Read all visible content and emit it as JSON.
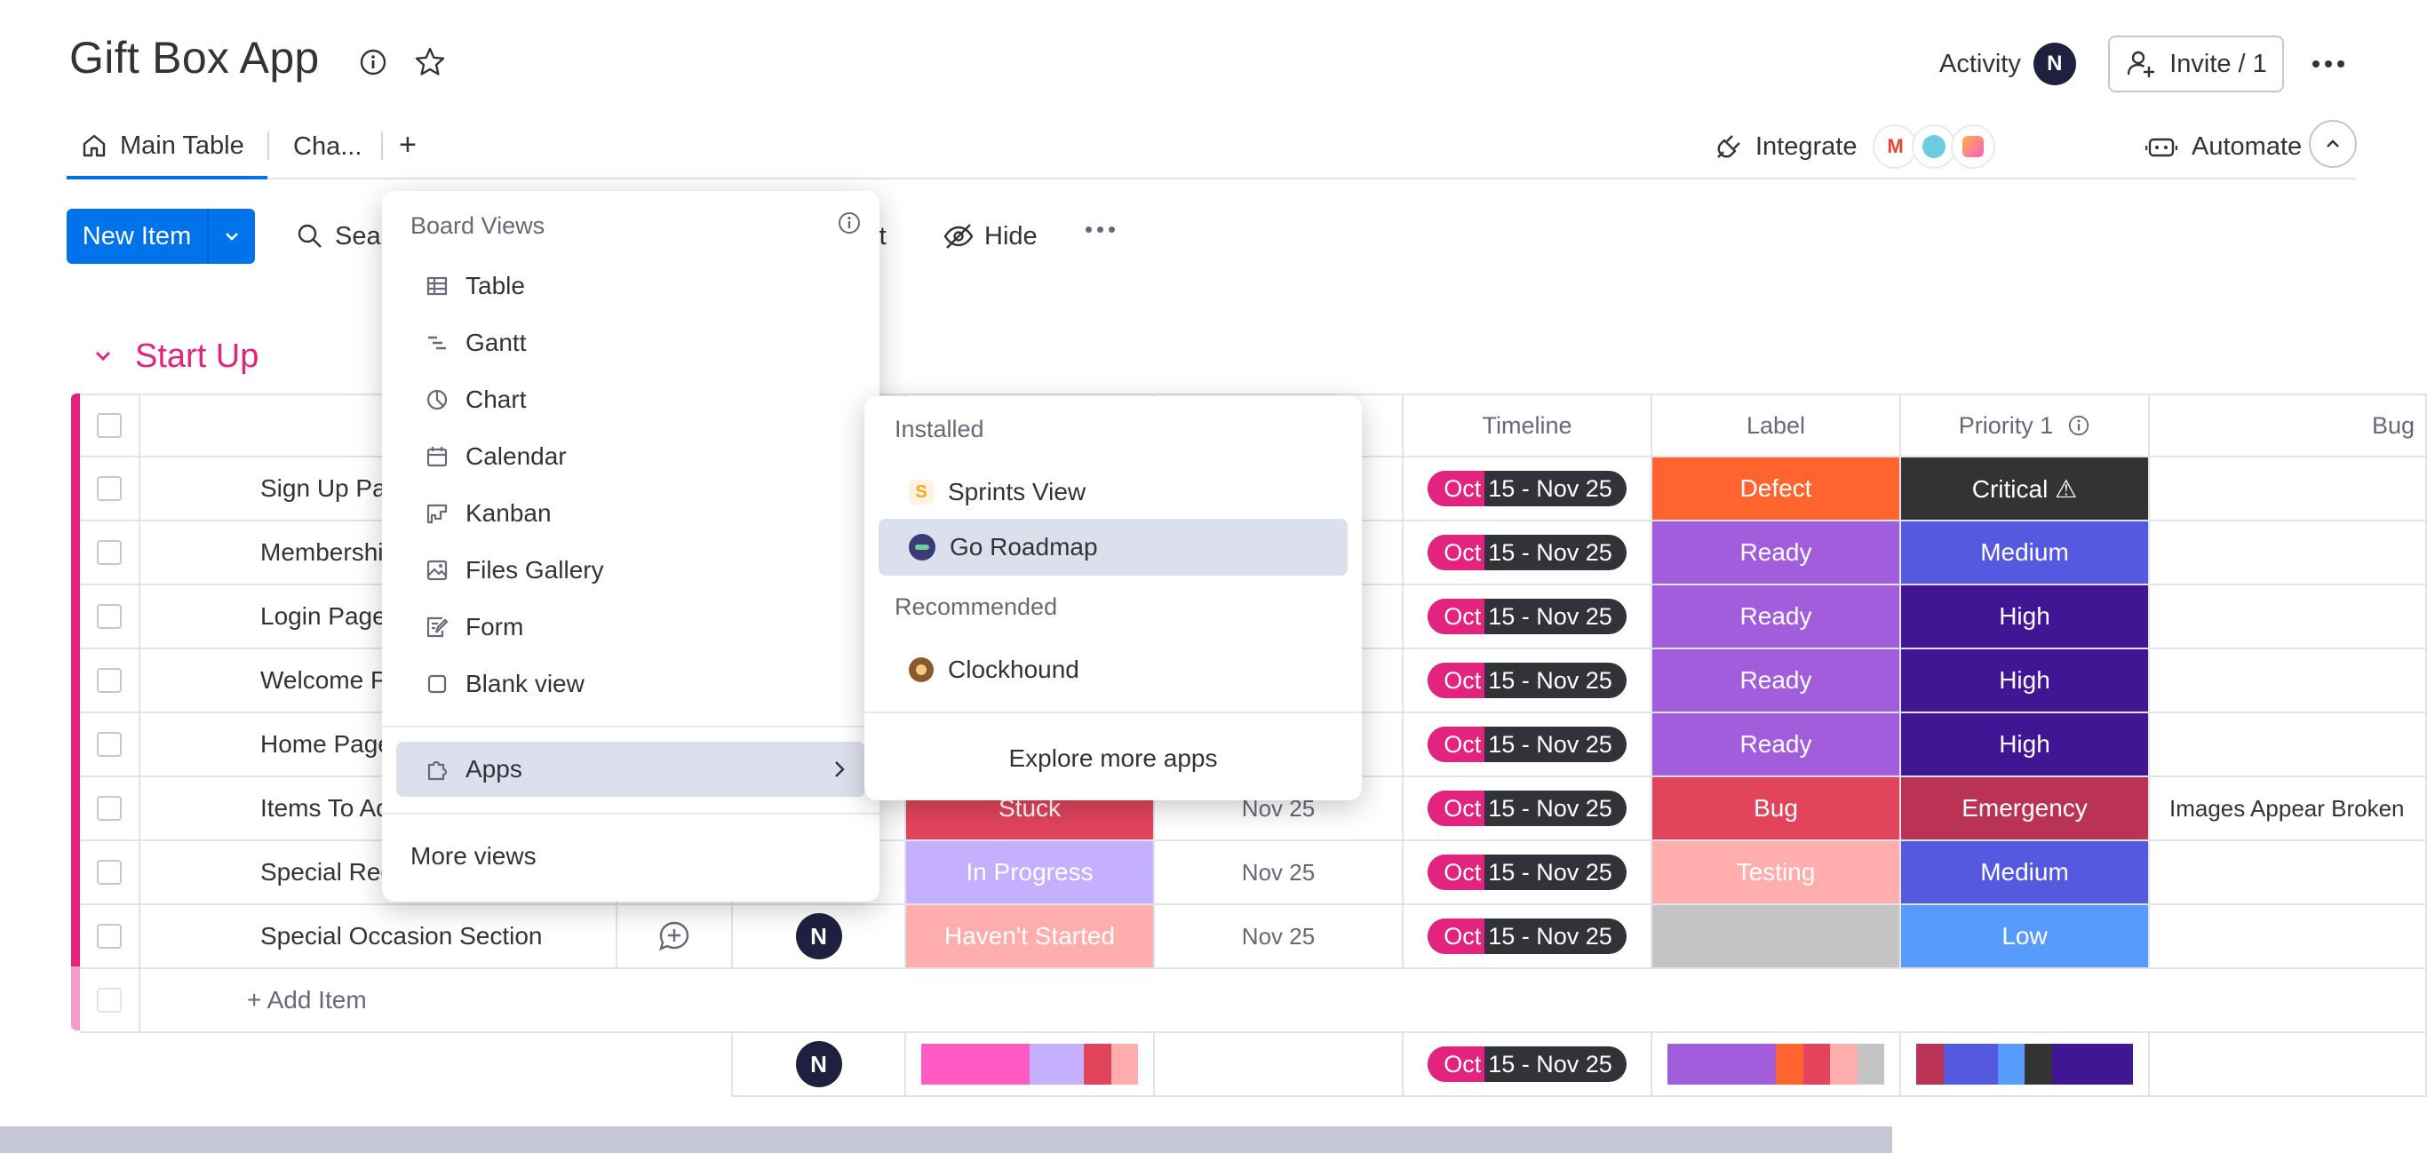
{
  "header": {
    "title": "Gift Box App",
    "activity_label": "Activity",
    "avatar_initial": "N",
    "invite_label": "Invite / 1"
  },
  "tabs": {
    "main": "Main Table",
    "second": "Cha..."
  },
  "integrations": {
    "integrate_label": "Integrate",
    "automate_label": "Automate"
  },
  "toolbar": {
    "new_item": "New Item",
    "search": "Sear",
    "sort_tail": "rt",
    "hide": "Hide"
  },
  "group": {
    "title": "Start Up",
    "color": "#e2247f",
    "headers": {
      "timeline": "Timeline",
      "label": "Label",
      "priority": "Priority 1",
      "bug": "Bug"
    },
    "rows": [
      {
        "name": "Sign Up Page",
        "status": "",
        "status_color": "",
        "date": "",
        "tl_a": "Oct",
        "tl_b": "15 - Nov 25",
        "label": "Defect",
        "label_color": "#ff642e",
        "priority": "Critical ⚠",
        "priority_color": "#333333",
        "bug": ""
      },
      {
        "name": "Membership",
        "status": "",
        "status_color": "",
        "date": "",
        "tl_a": "Oct",
        "tl_b": "15 - Nov 25",
        "label": "Ready",
        "label_color": "#a25ddc",
        "priority": "Medium",
        "priority_color": "#5559df",
        "bug": ""
      },
      {
        "name": "Login Page",
        "status": "",
        "status_color": "",
        "date": "",
        "tl_a": "Oct",
        "tl_b": "15 - Nov 25",
        "label": "Ready",
        "label_color": "#a25ddc",
        "priority": "High",
        "priority_color": "#401694",
        "bug": ""
      },
      {
        "name": "Welcome Page",
        "status": "",
        "status_color": "",
        "date": "",
        "tl_a": "Oct",
        "tl_b": "15 - Nov 25",
        "label": "Ready",
        "label_color": "#a25ddc",
        "priority": "High",
        "priority_color": "#401694",
        "bug": ""
      },
      {
        "name": "Home Page With",
        "status": "",
        "status_color": "",
        "date": "",
        "tl_a": "Oct",
        "tl_b": "15 - Nov 25",
        "label": "Ready",
        "label_color": "#a25ddc",
        "priority": "High",
        "priority_color": "#401694",
        "bug": ""
      },
      {
        "name": "Items To Add To",
        "status": "Stuck",
        "status_color": "#e2445c",
        "date": "Nov 25",
        "tl_a": "Oct",
        "tl_b": "15 - Nov 25",
        "label": "Bug",
        "label_color": "#e2445c",
        "priority": "Emergency",
        "priority_color": "#bb3354",
        "bug": "Images Appear Broken"
      },
      {
        "name": "Special Request",
        "status": "In Progress",
        "status_color": "#c4b0ff",
        "date": "Nov 25",
        "tl_a": "Oct",
        "tl_b": "15 - Nov 25",
        "label": "Testing",
        "label_color": "#ffadad",
        "priority": "Medium",
        "priority_color": "#5559df",
        "bug": ""
      },
      {
        "name": "Special Occasion Section",
        "status": "Haven't Started",
        "status_color": "#ffadad",
        "date": "Nov 25",
        "tl_a": "Oct",
        "tl_b": "15 - Nov 25",
        "label": "",
        "label_color": "#c4c4c4",
        "priority": "Low",
        "priority_color": "#579bfc",
        "bug": ""
      }
    ],
    "add_item": "+ Add Item",
    "summary": {
      "avatar_initial": "N",
      "tl_a": "Oct",
      "tl_b": "15 - Nov 25",
      "status_dist": [
        {
          "color": "#ff5ac4",
          "share": 0.5
        },
        {
          "color": "#c4b0ff",
          "share": 0.25
        },
        {
          "color": "#e2445c",
          "share": 0.125
        },
        {
          "color": "#ffadad",
          "share": 0.125
        }
      ],
      "label_dist": [
        {
          "color": "#a25ddc",
          "share": 0.5
        },
        {
          "color": "#ff642e",
          "share": 0.125
        },
        {
          "color": "#e2445c",
          "share": 0.125
        },
        {
          "color": "#ffadad",
          "share": 0.125
        },
        {
          "color": "#c4c4c4",
          "share": 0.125
        }
      ],
      "priority_dist": [
        {
          "color": "#bb3354",
          "share": 0.125
        },
        {
          "color": "#5559df",
          "share": 0.25
        },
        {
          "color": "#579bfc",
          "share": 0.125
        },
        {
          "color": "#333333",
          "share": 0.125
        },
        {
          "color": "#401694",
          "share": 0.375
        }
      ]
    }
  },
  "views_menu": {
    "heading": "Board Views",
    "items": [
      "Table",
      "Gantt",
      "Chart",
      "Calendar",
      "Kanban",
      "Files Gallery",
      "Form",
      "Blank view"
    ],
    "apps": "Apps",
    "more": "More views"
  },
  "apps_menu": {
    "installed_heading": "Installed",
    "installed": [
      "Sprints View",
      "Go Roadmap"
    ],
    "recommended_heading": "Recommended",
    "recommended": [
      "Clockhound"
    ],
    "explore": "Explore more apps"
  }
}
